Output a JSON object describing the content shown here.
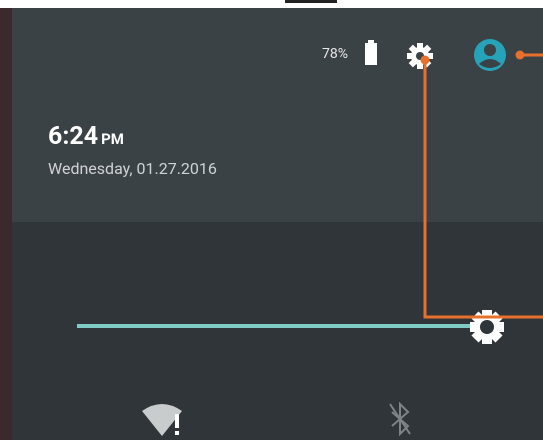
{
  "status": {
    "battery": "78%"
  },
  "clock": {
    "time": "6:24",
    "period": "PM",
    "date": "Wednesday, 01.27.2016"
  }
}
